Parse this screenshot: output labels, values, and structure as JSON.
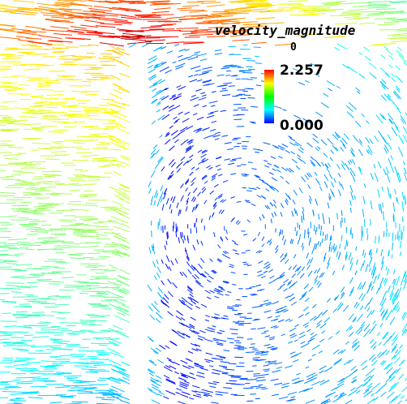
{
  "legend": {
    "title": "velocity_magnitude",
    "subtitle": "0",
    "max_label": "2.257",
    "min_label": "0.000"
  }
}
